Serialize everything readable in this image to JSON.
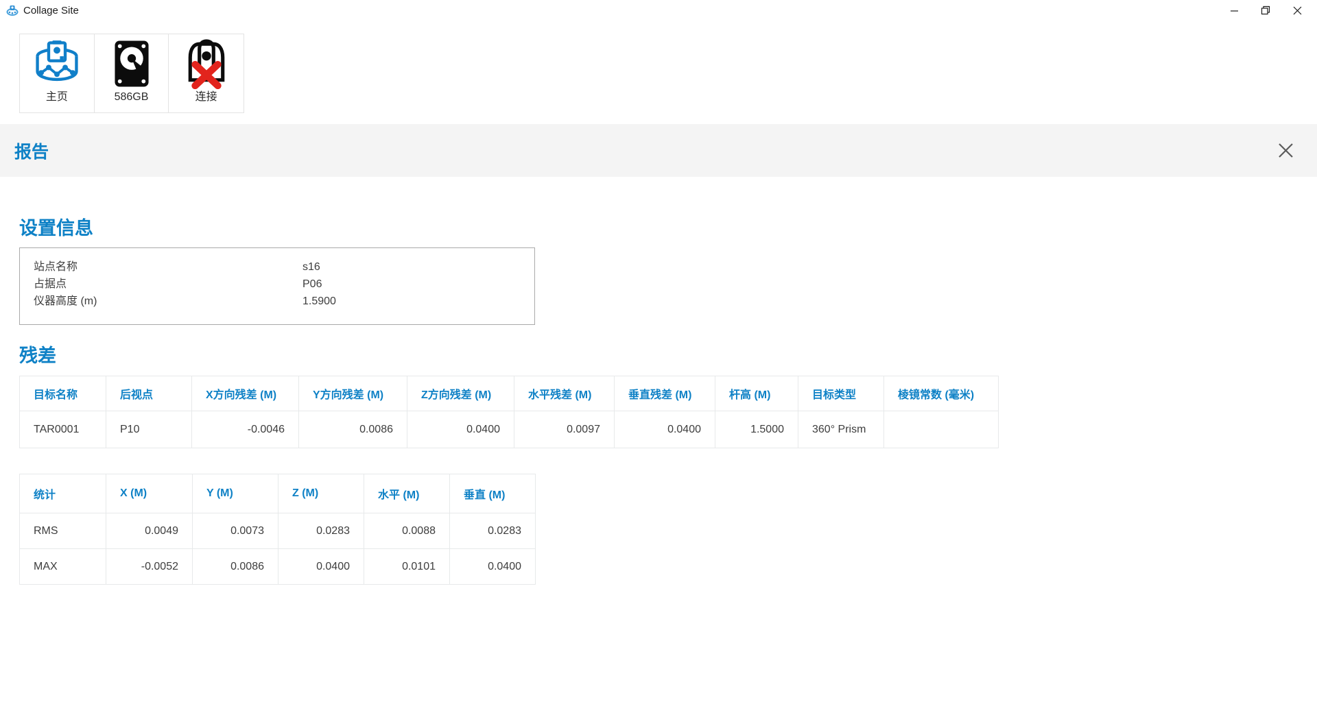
{
  "window": {
    "title": "Collage Site"
  },
  "background_edges": {
    "blue_color": "#0078d7",
    "black_color": "#1f1f1f"
  },
  "toolbar": {
    "items": [
      {
        "label": "主页",
        "icon": "survey-home-icon"
      },
      {
        "label": "586GB",
        "icon": "hard-disk-icon"
      },
      {
        "label": "连接",
        "icon": "connection-error-icon"
      }
    ]
  },
  "report": {
    "title": "报告"
  },
  "settings": {
    "heading": "设置信息",
    "rows": [
      {
        "label": "站点名称",
        "value": "s16"
      },
      {
        "label": "占据点",
        "value": "P06"
      },
      {
        "label": "仪器高度 (m)",
        "value": "1.5900"
      }
    ]
  },
  "residuals": {
    "heading": "残差",
    "targets_table": {
      "headers": [
        "目标名称",
        "后视点",
        "X方向残差 (M)",
        "Y方向残差 (M)",
        "Z方向残差 (M)",
        "水平残差 (M)",
        "垂直残差 (M)",
        "杆高 (M)",
        "目标类型",
        "棱镜常数 (毫米)"
      ],
      "rows": [
        [
          "TAR0001",
          "P10",
          "-0.0046",
          "0.0086",
          "0.0400",
          "0.0097",
          "0.0400",
          "1.5000",
          "360° Prism",
          ""
        ]
      ]
    },
    "stats_table": {
      "headers": [
        "统计",
        "X (M)",
        "Y (M)",
        "Z (M)",
        "水平 (M)",
        "垂直 (M)"
      ],
      "rows": [
        [
          "RMS",
          "0.0049",
          "0.0073",
          "0.0283",
          "0.0088",
          "0.0283"
        ],
        [
          "MAX",
          "-0.0052",
          "0.0086",
          "0.0400",
          "0.0101",
          "0.0400"
        ]
      ]
    }
  },
  "colors": {
    "accent_blue": "#0e81c6",
    "error_red": "#e2241d",
    "band_gray": "#f4f4f4"
  }
}
